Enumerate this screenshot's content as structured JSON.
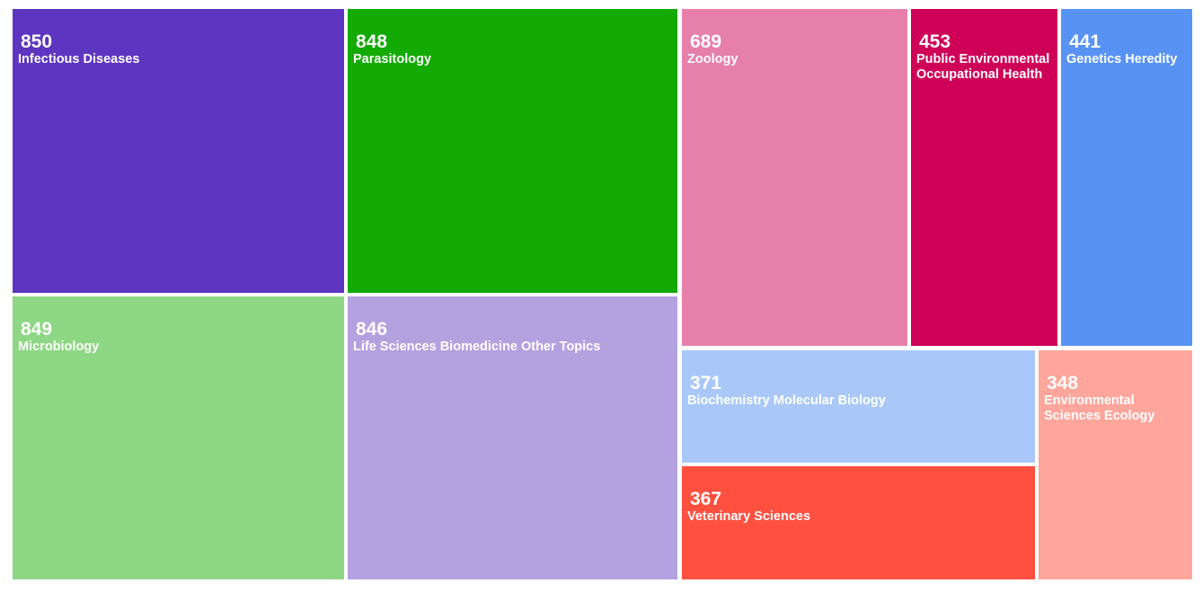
{
  "chart_data": {
    "type": "treemap",
    "items": [
      {
        "label": "Infectious Diseases",
        "value": 850,
        "color": "#5e35c0"
      },
      {
        "label": "Parasitology",
        "value": 848,
        "color": "#13aa04"
      },
      {
        "label": "Microbiology",
        "value": 849,
        "color": "#8ed784"
      },
      {
        "label": "Life Sciences Biomedicine Other Topics",
        "value": 846,
        "color": "#b3a1e0"
      },
      {
        "label": "Zoology",
        "value": 689,
        "color": "#e680ab"
      },
      {
        "label": "Public Environmental Occupational Health",
        "value": 453,
        "color": "#cf0058"
      },
      {
        "label": "Genetics Heredity",
        "value": 441,
        "color": "#5893f4"
      },
      {
        "label": "Biochemistry Molecular Biology",
        "value": 371,
        "color": "#a9c8f8"
      },
      {
        "label": "Veterinary Sciences",
        "value": 367,
        "color": "#ff5040"
      },
      {
        "label": "Environmental Sciences Ecology",
        "value": 348,
        "color": "#ffa69c"
      }
    ]
  }
}
